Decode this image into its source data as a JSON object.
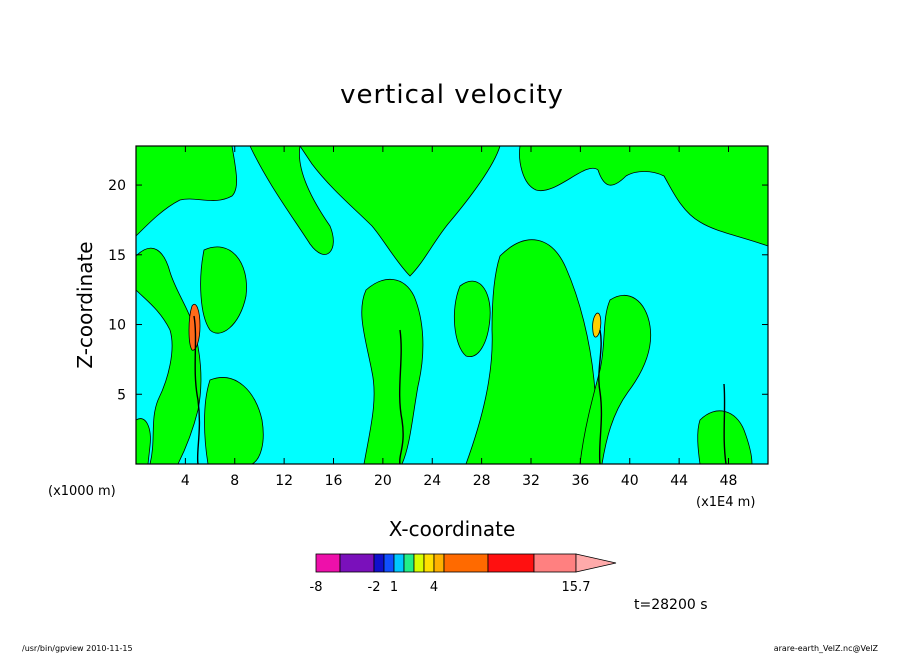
{
  "chart_data": {
    "type": "contour",
    "title": "vertical velocity",
    "xlabel": "X-coordinate",
    "ylabel": "Z-coordinate",
    "x_unit_left": "(x1000 m)",
    "x_unit_right": "(x1E4 m)",
    "xlim": [
      0,
      51.2
    ],
    "ylim": [
      0,
      22.8
    ],
    "x_ticks": [
      "4",
      "8",
      "12",
      "16",
      "20",
      "24",
      "28",
      "32",
      "36",
      "40",
      "44",
      "48"
    ],
    "y_ticks": [
      "5",
      "10",
      "15",
      "20"
    ],
    "x_tick_values": [
      4,
      8,
      12,
      16,
      20,
      24,
      28,
      32,
      36,
      40,
      44,
      48
    ],
    "y_tick_values": [
      5,
      10,
      15,
      20
    ],
    "regions": [
      {
        "level": "negative",
        "color": "#00ffff"
      },
      {
        "level": "positive",
        "color": "#00ff00"
      },
      {
        "level": "strong-positive",
        "color": "#ff6a1a"
      },
      {
        "level": "updraft-4",
        "color": "#ffd000"
      }
    ],
    "colorbar": {
      "min_label": "-8",
      "labels": [
        {
          "text": "-8",
          "value": -8
        },
        {
          "text": "-2",
          "value": -2
        },
        {
          "text": "1",
          "value": 1
        },
        {
          "text": "4",
          "value": 4
        },
        {
          "text": "15.7",
          "value": 15.7
        }
      ],
      "colors": [
        "#ee10aa",
        "#7a10bb",
        "#1010cc",
        "#1050ff",
        "#00c8ff",
        "#22ee88",
        "#d8ff00",
        "#ffe000",
        "#ffb000",
        "#ff6a00",
        "#ff1010",
        "#ff8080",
        "#ffaaaa"
      ]
    },
    "time_label": "t=28200 s"
  },
  "footer": {
    "left": "/usr/bin/gpview   2010-11-15",
    "right": "arare-earth_VelZ.nc@VelZ"
  }
}
